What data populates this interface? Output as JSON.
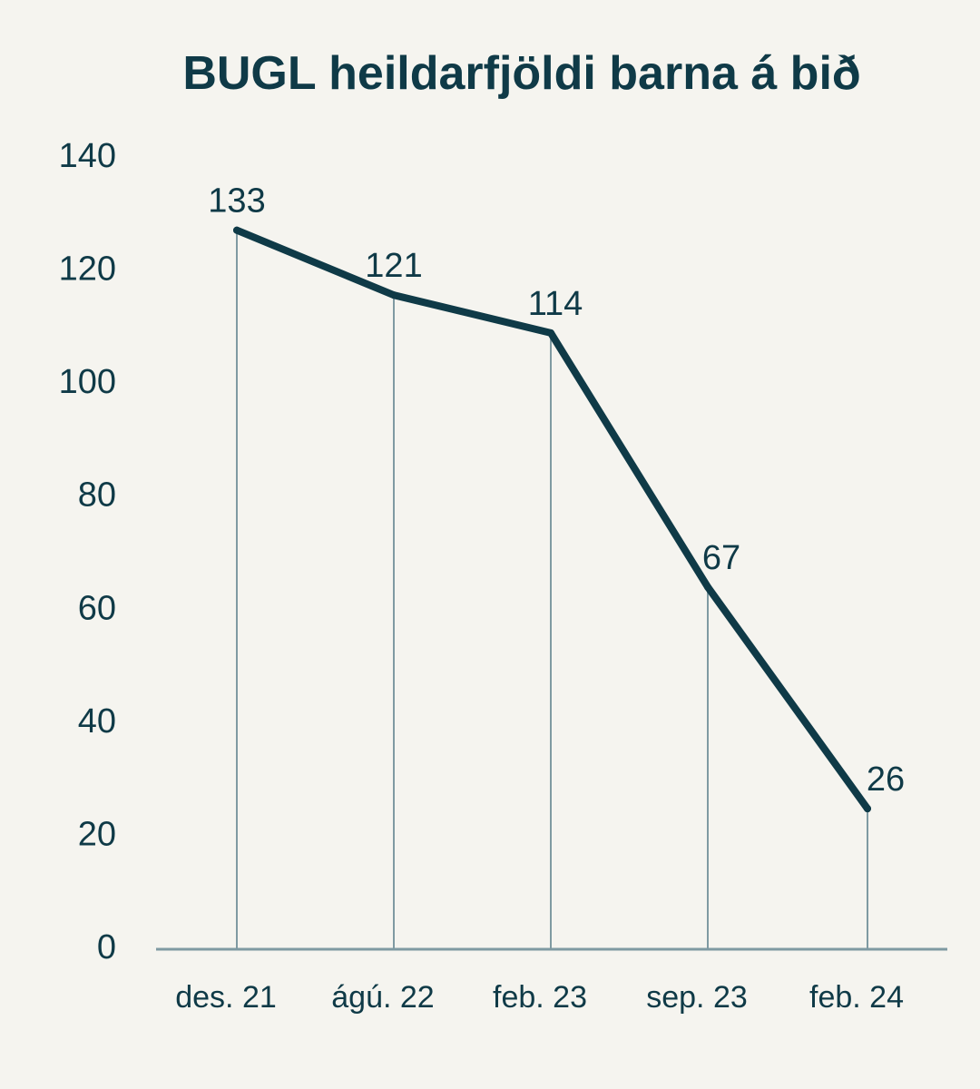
{
  "chart_data": {
    "type": "line",
    "title": "BUGL heildarfjöldi barna á bið",
    "categories": [
      "des. 21",
      "ágú. 22",
      "feb. 23",
      "sep. 23",
      "feb. 24"
    ],
    "series": [
      {
        "values": [
          133,
          121,
          114,
          67,
          26
        ]
      }
    ],
    "data_labels": [
      "133",
      "121",
      "114",
      "67",
      "26"
    ],
    "y_ticks": [
      "0",
      "20",
      "40",
      "60",
      "80",
      "100",
      "120",
      "140"
    ],
    "ylim": [
      0,
      140
    ],
    "xlabel": "",
    "ylabel": "",
    "grid": false,
    "drop_lines": true,
    "colors": {
      "background": "#f5f4ef",
      "text": "#0f3a47",
      "line": "#0f3a47",
      "axis": "#7f9aa2"
    }
  }
}
